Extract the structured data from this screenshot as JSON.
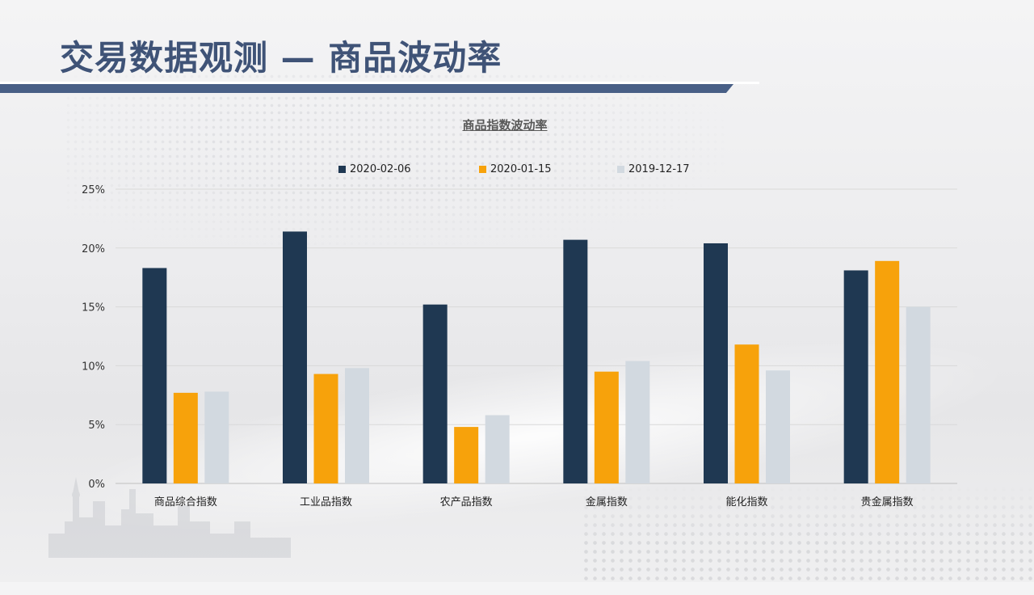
{
  "page": {
    "title": "交易数据观测 — 商品波动率",
    "title_color": "#3f5377",
    "accent_bar_color": "#485f86"
  },
  "chart_data": {
    "type": "bar",
    "title": "商品指数波动率",
    "categories": [
      "商品综合指数",
      "工业品指数",
      "农产品指数",
      "金属指数",
      "能化指数",
      "贵金属指数"
    ],
    "series": [
      {
        "name": "2020-02-06",
        "color": "#1f3852",
        "values": [
          18.3,
          21.4,
          15.2,
          20.7,
          20.4,
          18.1
        ]
      },
      {
        "name": "2020-01-15",
        "color": "#f7a20b",
        "values": [
          7.7,
          9.3,
          4.8,
          9.5,
          11.8,
          18.9
        ]
      },
      {
        "name": "2019-12-17",
        "color": "#d2d9e0",
        "values": [
          7.8,
          9.8,
          5.8,
          10.4,
          9.6,
          15.0
        ]
      }
    ],
    "y_ticks": [
      "0%",
      "5%",
      "10%",
      "15%",
      "20%",
      "25%"
    ],
    "ylim": [
      0,
      25
    ],
    "grid": true,
    "legend_position": "top"
  }
}
